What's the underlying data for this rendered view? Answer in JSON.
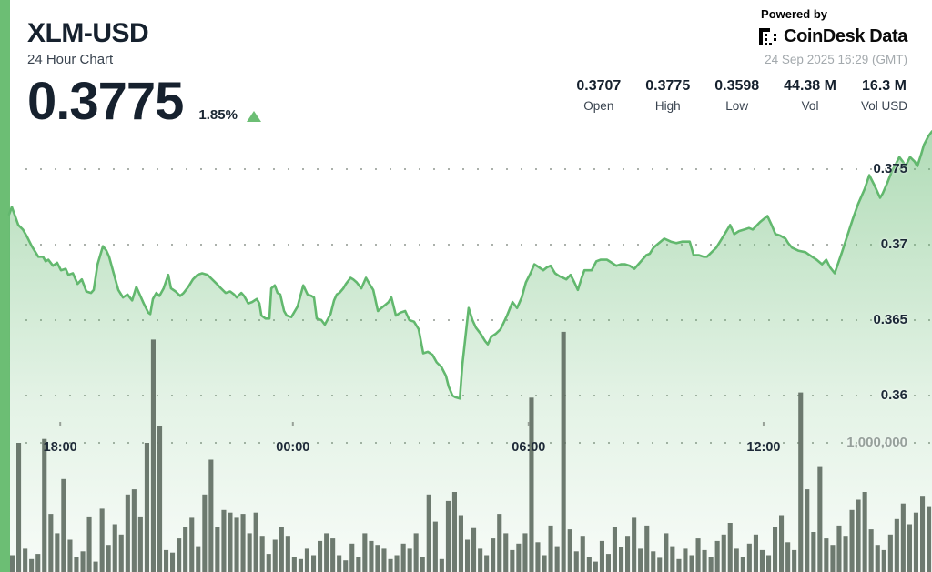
{
  "header": {
    "symbol": "XLM-USD",
    "subtitle": "24 Hour Chart",
    "price": "0.3775",
    "change_pct": "1.85%",
    "powered_by": "Powered by",
    "brand": "CoinDesk Data",
    "timestamp": "24 Sep 2025 16:29 (GMT)",
    "stats": [
      {
        "value": "0.3707",
        "label": "Open"
      },
      {
        "value": "0.3775",
        "label": "High"
      },
      {
        "value": "0.3598",
        "label": "Low"
      },
      {
        "value": "44.38 M",
        "label": "Vol"
      },
      {
        "value": "16.3 M",
        "label": "Vol USD"
      }
    ]
  },
  "colors": {
    "accent_green": "#6cbe74",
    "line_green": "#62b86e",
    "volume_bar": "#5e6b60",
    "grid_dot": "#8f988f",
    "text_dark": "#16212e",
    "text_gray": "#a3a9ad",
    "vol_axis_gray": "#96a09b"
  },
  "chart_data": {
    "type": "area",
    "title": "XLM-USD 24 Hour Chart",
    "time_span_hours": 24,
    "x_axis": {
      "tick_labels": [
        "18:00",
        "00:00",
        "06:00",
        "12:00"
      ],
      "tick_hours": [
        1.33,
        7.38,
        13.51,
        19.62
      ]
    },
    "y_axis_price": {
      "tick_values": [
        0.375,
        0.37,
        0.365,
        0.36
      ],
      "tick_labels": [
        "0.375",
        "0.37",
        "0.365",
        "0.36"
      ],
      "ylim": [
        0.358,
        0.3785
      ]
    },
    "y_axis_volume": {
      "tick_values_m": [
        1.0
      ],
      "tick_labels": [
        "1,000,000"
      ],
      "ylim_m": [
        0,
        2.0
      ]
    },
    "price_series": {
      "name": "XLM-USD price",
      "units": "USD",
      "points_hour_price": [
        [
          0,
          0.372
        ],
        [
          0.07,
          0.3725
        ],
        [
          0.24,
          0.3713
        ],
        [
          0.36,
          0.371
        ],
        [
          0.47,
          0.3705
        ],
        [
          0.59,
          0.3699
        ],
        [
          0.76,
          0.3692
        ],
        [
          0.88,
          0.3692
        ],
        [
          0.95,
          0.3689
        ],
        [
          1.02,
          0.369
        ],
        [
          1.14,
          0.3686
        ],
        [
          1.25,
          0.3688
        ],
        [
          1.35,
          0.3683
        ],
        [
          1.47,
          0.3684
        ],
        [
          1.54,
          0.368
        ],
        [
          1.66,
          0.3681
        ],
        [
          1.78,
          0.3674
        ],
        [
          1.89,
          0.3677
        ],
        [
          2.01,
          0.3669
        ],
        [
          2.13,
          0.3668
        ],
        [
          2.2,
          0.367
        ],
        [
          2.3,
          0.3687
        ],
        [
          2.44,
          0.3699
        ],
        [
          2.53,
          0.3696
        ],
        [
          2.6,
          0.3692
        ],
        [
          2.72,
          0.3681
        ],
        [
          2.84,
          0.367
        ],
        [
          2.96,
          0.3665
        ],
        [
          3.08,
          0.3667
        ],
        [
          3.2,
          0.3663
        ],
        [
          3.31,
          0.3672
        ],
        [
          3.5,
          0.3661
        ],
        [
          3.62,
          0.3655
        ],
        [
          3.67,
          0.3654
        ],
        [
          3.74,
          0.3664
        ],
        [
          3.83,
          0.3668
        ],
        [
          3.91,
          0.3666
        ],
        [
          4.02,
          0.3671
        ],
        [
          4.14,
          0.368
        ],
        [
          4.21,
          0.3671
        ],
        [
          4.33,
          0.3669
        ],
        [
          4.45,
          0.3666
        ],
        [
          4.54,
          0.3668
        ],
        [
          4.66,
          0.3672
        ],
        [
          4.78,
          0.3677
        ],
        [
          4.9,
          0.368
        ],
        [
          5.02,
          0.3681
        ],
        [
          5.16,
          0.368
        ],
        [
          5.28,
          0.3677
        ],
        [
          5.4,
          0.3674
        ],
        [
          5.51,
          0.3671
        ],
        [
          5.63,
          0.3668
        ],
        [
          5.75,
          0.3669
        ],
        [
          5.85,
          0.3667
        ],
        [
          5.92,
          0.3665
        ],
        [
          6.04,
          0.3668
        ],
        [
          6.11,
          0.3666
        ],
        [
          6.22,
          0.3661
        ],
        [
          6.32,
          0.3662
        ],
        [
          6.44,
          0.3664
        ],
        [
          6.51,
          0.3661
        ],
        [
          6.56,
          0.3653
        ],
        [
          6.67,
          0.3651
        ],
        [
          6.77,
          0.3651
        ],
        [
          6.82,
          0.3671
        ],
        [
          6.91,
          0.3673
        ],
        [
          6.98,
          0.3668
        ],
        [
          7.05,
          0.3667
        ],
        [
          7.15,
          0.3656
        ],
        [
          7.22,
          0.3653
        ],
        [
          7.34,
          0.3652
        ],
        [
          7.5,
          0.3659
        ],
        [
          7.65,
          0.3673
        ],
        [
          7.76,
          0.3667
        ],
        [
          7.86,
          0.3666
        ],
        [
          7.93,
          0.3665
        ],
        [
          8.0,
          0.3651
        ],
        [
          8.12,
          0.365
        ],
        [
          8.21,
          0.3647
        ],
        [
          8.36,
          0.3654
        ],
        [
          8.45,
          0.3663
        ],
        [
          8.52,
          0.3667
        ],
        [
          8.59,
          0.3668
        ],
        [
          8.69,
          0.3671
        ],
        [
          8.76,
          0.3674
        ],
        [
          8.88,
          0.3678
        ],
        [
          8.95,
          0.3677
        ],
        [
          9.04,
          0.3675
        ],
        [
          9.16,
          0.3671
        ],
        [
          9.28,
          0.3678
        ],
        [
          9.37,
          0.3674
        ],
        [
          9.47,
          0.367
        ],
        [
          9.59,
          0.3656
        ],
        [
          9.68,
          0.3658
        ],
        [
          9.78,
          0.366
        ],
        [
          9.87,
          0.3662
        ],
        [
          9.94,
          0.3665
        ],
        [
          10.06,
          0.3653
        ],
        [
          10.18,
          0.3655
        ],
        [
          10.3,
          0.3656
        ],
        [
          10.41,
          0.365
        ],
        [
          10.53,
          0.3649
        ],
        [
          10.65,
          0.3644
        ],
        [
          10.77,
          0.3628
        ],
        [
          10.89,
          0.3629
        ],
        [
          11.01,
          0.3627
        ],
        [
          11.12,
          0.3622
        ],
        [
          11.24,
          0.3619
        ],
        [
          11.36,
          0.3613
        ],
        [
          11.43,
          0.3606
        ],
        [
          11.53,
          0.36
        ],
        [
          11.6,
          0.3599
        ],
        [
          11.72,
          0.3598
        ],
        [
          11.79,
          0.3621
        ],
        [
          11.95,
          0.3658
        ],
        [
          12.05,
          0.365
        ],
        [
          12.14,
          0.3645
        ],
        [
          12.26,
          0.3641
        ],
        [
          12.38,
          0.3636
        ],
        [
          12.45,
          0.3634
        ],
        [
          12.54,
          0.3639
        ],
        [
          12.66,
          0.3641
        ],
        [
          12.78,
          0.3644
        ],
        [
          12.95,
          0.3653
        ],
        [
          13.09,
          0.3662
        ],
        [
          13.21,
          0.3658
        ],
        [
          13.33,
          0.3665
        ],
        [
          13.44,
          0.3675
        ],
        [
          13.56,
          0.3681
        ],
        [
          13.66,
          0.3687
        ],
        [
          13.78,
          0.3685
        ],
        [
          13.89,
          0.3683
        ],
        [
          13.99,
          0.3685
        ],
        [
          14.08,
          0.3686
        ],
        [
          14.2,
          0.3681
        ],
        [
          14.32,
          0.3679
        ],
        [
          14.41,
          0.3678
        ],
        [
          14.49,
          0.3677
        ],
        [
          14.6,
          0.368
        ],
        [
          14.7,
          0.3675
        ],
        [
          14.79,
          0.367
        ],
        [
          14.89,
          0.3678
        ],
        [
          14.96,
          0.3683
        ],
        [
          15.05,
          0.3683
        ],
        [
          15.15,
          0.3683
        ],
        [
          15.27,
          0.3689
        ],
        [
          15.38,
          0.369
        ],
        [
          15.55,
          0.369
        ],
        [
          15.67,
          0.3688
        ],
        [
          15.79,
          0.3686
        ],
        [
          15.91,
          0.3687
        ],
        [
          16.02,
          0.3687
        ],
        [
          16.14,
          0.3686
        ],
        [
          16.26,
          0.3684
        ],
        [
          16.4,
          0.3688
        ],
        [
          16.57,
          0.3693
        ],
        [
          16.66,
          0.3694
        ],
        [
          16.76,
          0.3698
        ],
        [
          16.9,
          0.3701
        ],
        [
          17.04,
          0.3704
        ],
        [
          17.21,
          0.3702
        ],
        [
          17.35,
          0.3701
        ],
        [
          17.51,
          0.3702
        ],
        [
          17.7,
          0.3702
        ],
        [
          17.8,
          0.3693
        ],
        [
          17.94,
          0.3693
        ],
        [
          18.06,
          0.3692
        ],
        [
          18.15,
          0.3692
        ],
        [
          18.27,
          0.3695
        ],
        [
          18.39,
          0.3698
        ],
        [
          18.56,
          0.3705
        ],
        [
          18.75,
          0.3713
        ],
        [
          18.86,
          0.3707
        ],
        [
          18.98,
          0.3709
        ],
        [
          19.12,
          0.371
        ],
        [
          19.24,
          0.3711
        ],
        [
          19.34,
          0.371
        ],
        [
          19.53,
          0.3715
        ],
        [
          19.72,
          0.3719
        ],
        [
          19.83,
          0.3713
        ],
        [
          19.93,
          0.3707
        ],
        [
          20.05,
          0.3706
        ],
        [
          20.19,
          0.3704
        ],
        [
          20.26,
          0.3701
        ],
        [
          20.36,
          0.3698
        ],
        [
          20.52,
          0.3696
        ],
        [
          20.71,
          0.3695
        ],
        [
          20.88,
          0.3692
        ],
        [
          21.0,
          0.369
        ],
        [
          21.14,
          0.3687
        ],
        [
          21.25,
          0.369
        ],
        [
          21.35,
          0.3685
        ],
        [
          21.47,
          0.3681
        ],
        [
          21.66,
          0.3695
        ],
        [
          21.85,
          0.371
        ],
        [
          21.94,
          0.3717
        ],
        [
          22.08,
          0.3727
        ],
        [
          22.25,
          0.3737
        ],
        [
          22.37,
          0.3746
        ],
        [
          22.49,
          0.374
        ],
        [
          22.58,
          0.3735
        ],
        [
          22.65,
          0.3731
        ],
        [
          22.72,
          0.3734
        ],
        [
          22.84,
          0.3741
        ],
        [
          22.96,
          0.3749
        ],
        [
          23.05,
          0.3753
        ],
        [
          23.15,
          0.3758
        ],
        [
          23.24,
          0.3755
        ],
        [
          23.31,
          0.3752
        ],
        [
          23.43,
          0.3758
        ],
        [
          23.55,
          0.3755
        ],
        [
          23.62,
          0.3752
        ],
        [
          23.72,
          0.376
        ],
        [
          23.79,
          0.3766
        ],
        [
          23.91,
          0.3772
        ],
        [
          24.0,
          0.3775
        ]
      ]
    },
    "volume_series": {
      "name": "Volume",
      "units": "millions",
      "interval_minutes": 10,
      "values_m": [
        0.13,
        1.0,
        0.18,
        0.1,
        0.14,
        1.03,
        0.45,
        0.3,
        0.72,
        0.25,
        0.12,
        0.16,
        0.43,
        0.08,
        0.49,
        0.21,
        0.37,
        0.29,
        0.6,
        0.64,
        0.43,
        1.0,
        1.8,
        1.13,
        0.17,
        0.15,
        0.26,
        0.35,
        0.42,
        0.2,
        0.6,
        0.87,
        0.35,
        0.48,
        0.46,
        0.42,
        0.45,
        0.3,
        0.46,
        0.28,
        0.14,
        0.25,
        0.35,
        0.28,
        0.12,
        0.1,
        0.18,
        0.13,
        0.24,
        0.3,
        0.26,
        0.13,
        0.09,
        0.22,
        0.12,
        0.3,
        0.24,
        0.21,
        0.18,
        0.1,
        0.13,
        0.22,
        0.18,
        0.3,
        0.12,
        0.6,
        0.39,
        0.1,
        0.55,
        0.62,
        0.44,
        0.25,
        0.34,
        0.18,
        0.13,
        0.26,
        0.45,
        0.3,
        0.17,
        0.22,
        0.3,
        1.35,
        0.23,
        0.13,
        0.36,
        0.2,
        1.86,
        0.33,
        0.16,
        0.28,
        0.12,
        0.08,
        0.24,
        0.14,
        0.35,
        0.19,
        0.28,
        0.42,
        0.18,
        0.36,
        0.16,
        0.11,
        0.3,
        0.2,
        0.1,
        0.18,
        0.13,
        0.26,
        0.17,
        0.12,
        0.24,
        0.29,
        0.38,
        0.18,
        0.12,
        0.22,
        0.29,
        0.17,
        0.13,
        0.35,
        0.44,
        0.23,
        0.17,
        1.39,
        0.64,
        0.31,
        0.82,
        0.26,
        0.21,
        0.36,
        0.28,
        0.48,
        0.56,
        0.62,
        0.33,
        0.21,
        0.17,
        0.29,
        0.41,
        0.53,
        0.37,
        0.46,
        0.59,
        0.51
      ]
    },
    "grid": "dotted horizontal lines at each price tick and at 1,000,000 volume",
    "legend": "none"
  }
}
